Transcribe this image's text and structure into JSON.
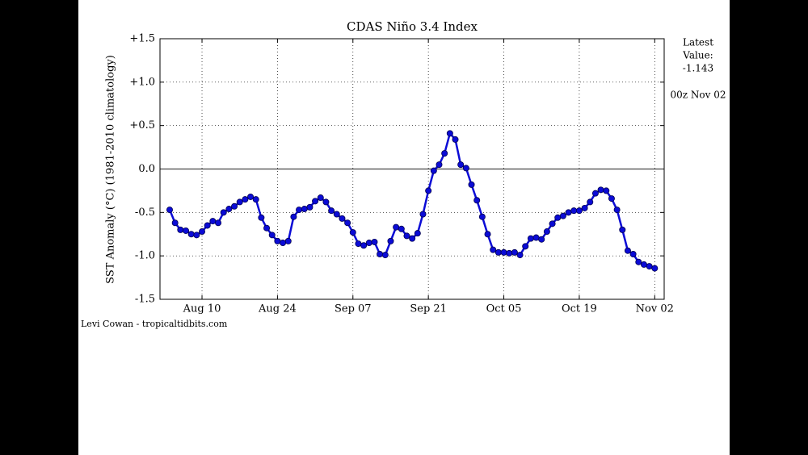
{
  "chart_data": {
    "type": "line",
    "title": "CDAS Niño 3.4 Index",
    "y_label": "SST Anomaly (°C) (1981-2010 climatology)",
    "annotations": [
      "Latest",
      "Value:",
      "-1.143",
      "00z Nov 02"
    ],
    "credit": "Levi Cowan - tropicaltidbits.com",
    "x": [
      "Aug 04",
      "Aug 05",
      "Aug 06",
      "Aug 07",
      "Aug 08",
      "Aug 09",
      "Aug 10",
      "Aug 11",
      "Aug 12",
      "Aug 13",
      "Aug 14",
      "Aug 15",
      "Aug 16",
      "Aug 17",
      "Aug 18",
      "Aug 19",
      "Aug 20",
      "Aug 21",
      "Aug 22",
      "Aug 23",
      "Aug 24",
      "Aug 25",
      "Aug 26",
      "Aug 27",
      "Aug 28",
      "Aug 29",
      "Aug 30",
      "Aug 31",
      "Sep 01",
      "Sep 02",
      "Sep 03",
      "Sep 04",
      "Sep 05",
      "Sep 06",
      "Sep 07",
      "Sep 08",
      "Sep 09",
      "Sep 10",
      "Sep 11",
      "Sep 12",
      "Sep 13",
      "Sep 14",
      "Sep 15",
      "Sep 16",
      "Sep 17",
      "Sep 18",
      "Sep 19",
      "Sep 20",
      "Sep 21",
      "Sep 22",
      "Sep 23",
      "Sep 24",
      "Sep 25",
      "Sep 26",
      "Sep 27",
      "Sep 28",
      "Sep 29",
      "Sep 30",
      "Oct 01",
      "Oct 02",
      "Oct 03",
      "Oct 04",
      "Oct 05",
      "Oct 06",
      "Oct 07",
      "Oct 08",
      "Oct 09",
      "Oct 10",
      "Oct 11",
      "Oct 12",
      "Oct 13",
      "Oct 14",
      "Oct 15",
      "Oct 16",
      "Oct 17",
      "Oct 18",
      "Oct 19",
      "Oct 20",
      "Oct 21",
      "Oct 22",
      "Oct 23",
      "Oct 24",
      "Oct 25",
      "Oct 26",
      "Oct 27",
      "Oct 28",
      "Oct 29",
      "Oct 30",
      "Oct 31",
      "Nov 01",
      "Nov 02"
    ],
    "series": [
      {
        "color": "#0b0bd6",
        "values": [
          -0.47,
          -0.62,
          -0.7,
          -0.71,
          -0.75,
          -0.76,
          -0.72,
          -0.65,
          -0.6,
          -0.62,
          -0.5,
          -0.46,
          -0.43,
          -0.38,
          -0.35,
          -0.32,
          -0.35,
          -0.56,
          -0.68,
          -0.76,
          -0.83,
          -0.85,
          -0.83,
          -0.55,
          -0.47,
          -0.46,
          -0.44,
          -0.37,
          -0.33,
          -0.38,
          -0.48,
          -0.52,
          -0.57,
          -0.62,
          -0.73,
          -0.86,
          -0.88,
          -0.85,
          -0.84,
          -0.98,
          -0.99,
          -0.83,
          -0.67,
          -0.69,
          -0.77,
          -0.8,
          -0.74,
          -0.52,
          -0.25,
          -0.02,
          0.05,
          0.18,
          0.41,
          0.34,
          0.05,
          0.01,
          -0.18,
          -0.36,
          -0.55,
          -0.75,
          -0.93,
          -0.96,
          -0.96,
          -0.97,
          -0.96,
          -0.99,
          -0.89,
          -0.8,
          -0.79,
          -0.81,
          -0.72,
          -0.63,
          -0.56,
          -0.54,
          -0.5,
          -0.48,
          -0.48,
          -0.45,
          -0.38,
          -0.28,
          -0.24,
          -0.25,
          -0.34,
          -0.47,
          -0.7,
          -0.94,
          -0.98,
          -1.07,
          -1.1,
          -1.12,
          -1.143
        ]
      }
    ],
    "xticks": [
      "Aug 10",
      "Aug 24",
      "Sep 07",
      "Sep 21",
      "Oct 05",
      "Oct 19",
      "Nov 02"
    ],
    "ylim": [
      -1.5,
      1.5
    ],
    "yticks": [
      -1.5,
      {
        "value": -1.0,
        "label": "-1.0"
      },
      -0.5,
      {
        "value": 0,
        "label": "0.0"
      },
      {
        "value": 0.5,
        "label": "+0.5"
      },
      {
        "value": 1.0,
        "label": "+1.0"
      },
      {
        "value": 1.5,
        "label": "+1.5"
      }
    ],
    "reference_line": 0,
    "grid": true
  }
}
